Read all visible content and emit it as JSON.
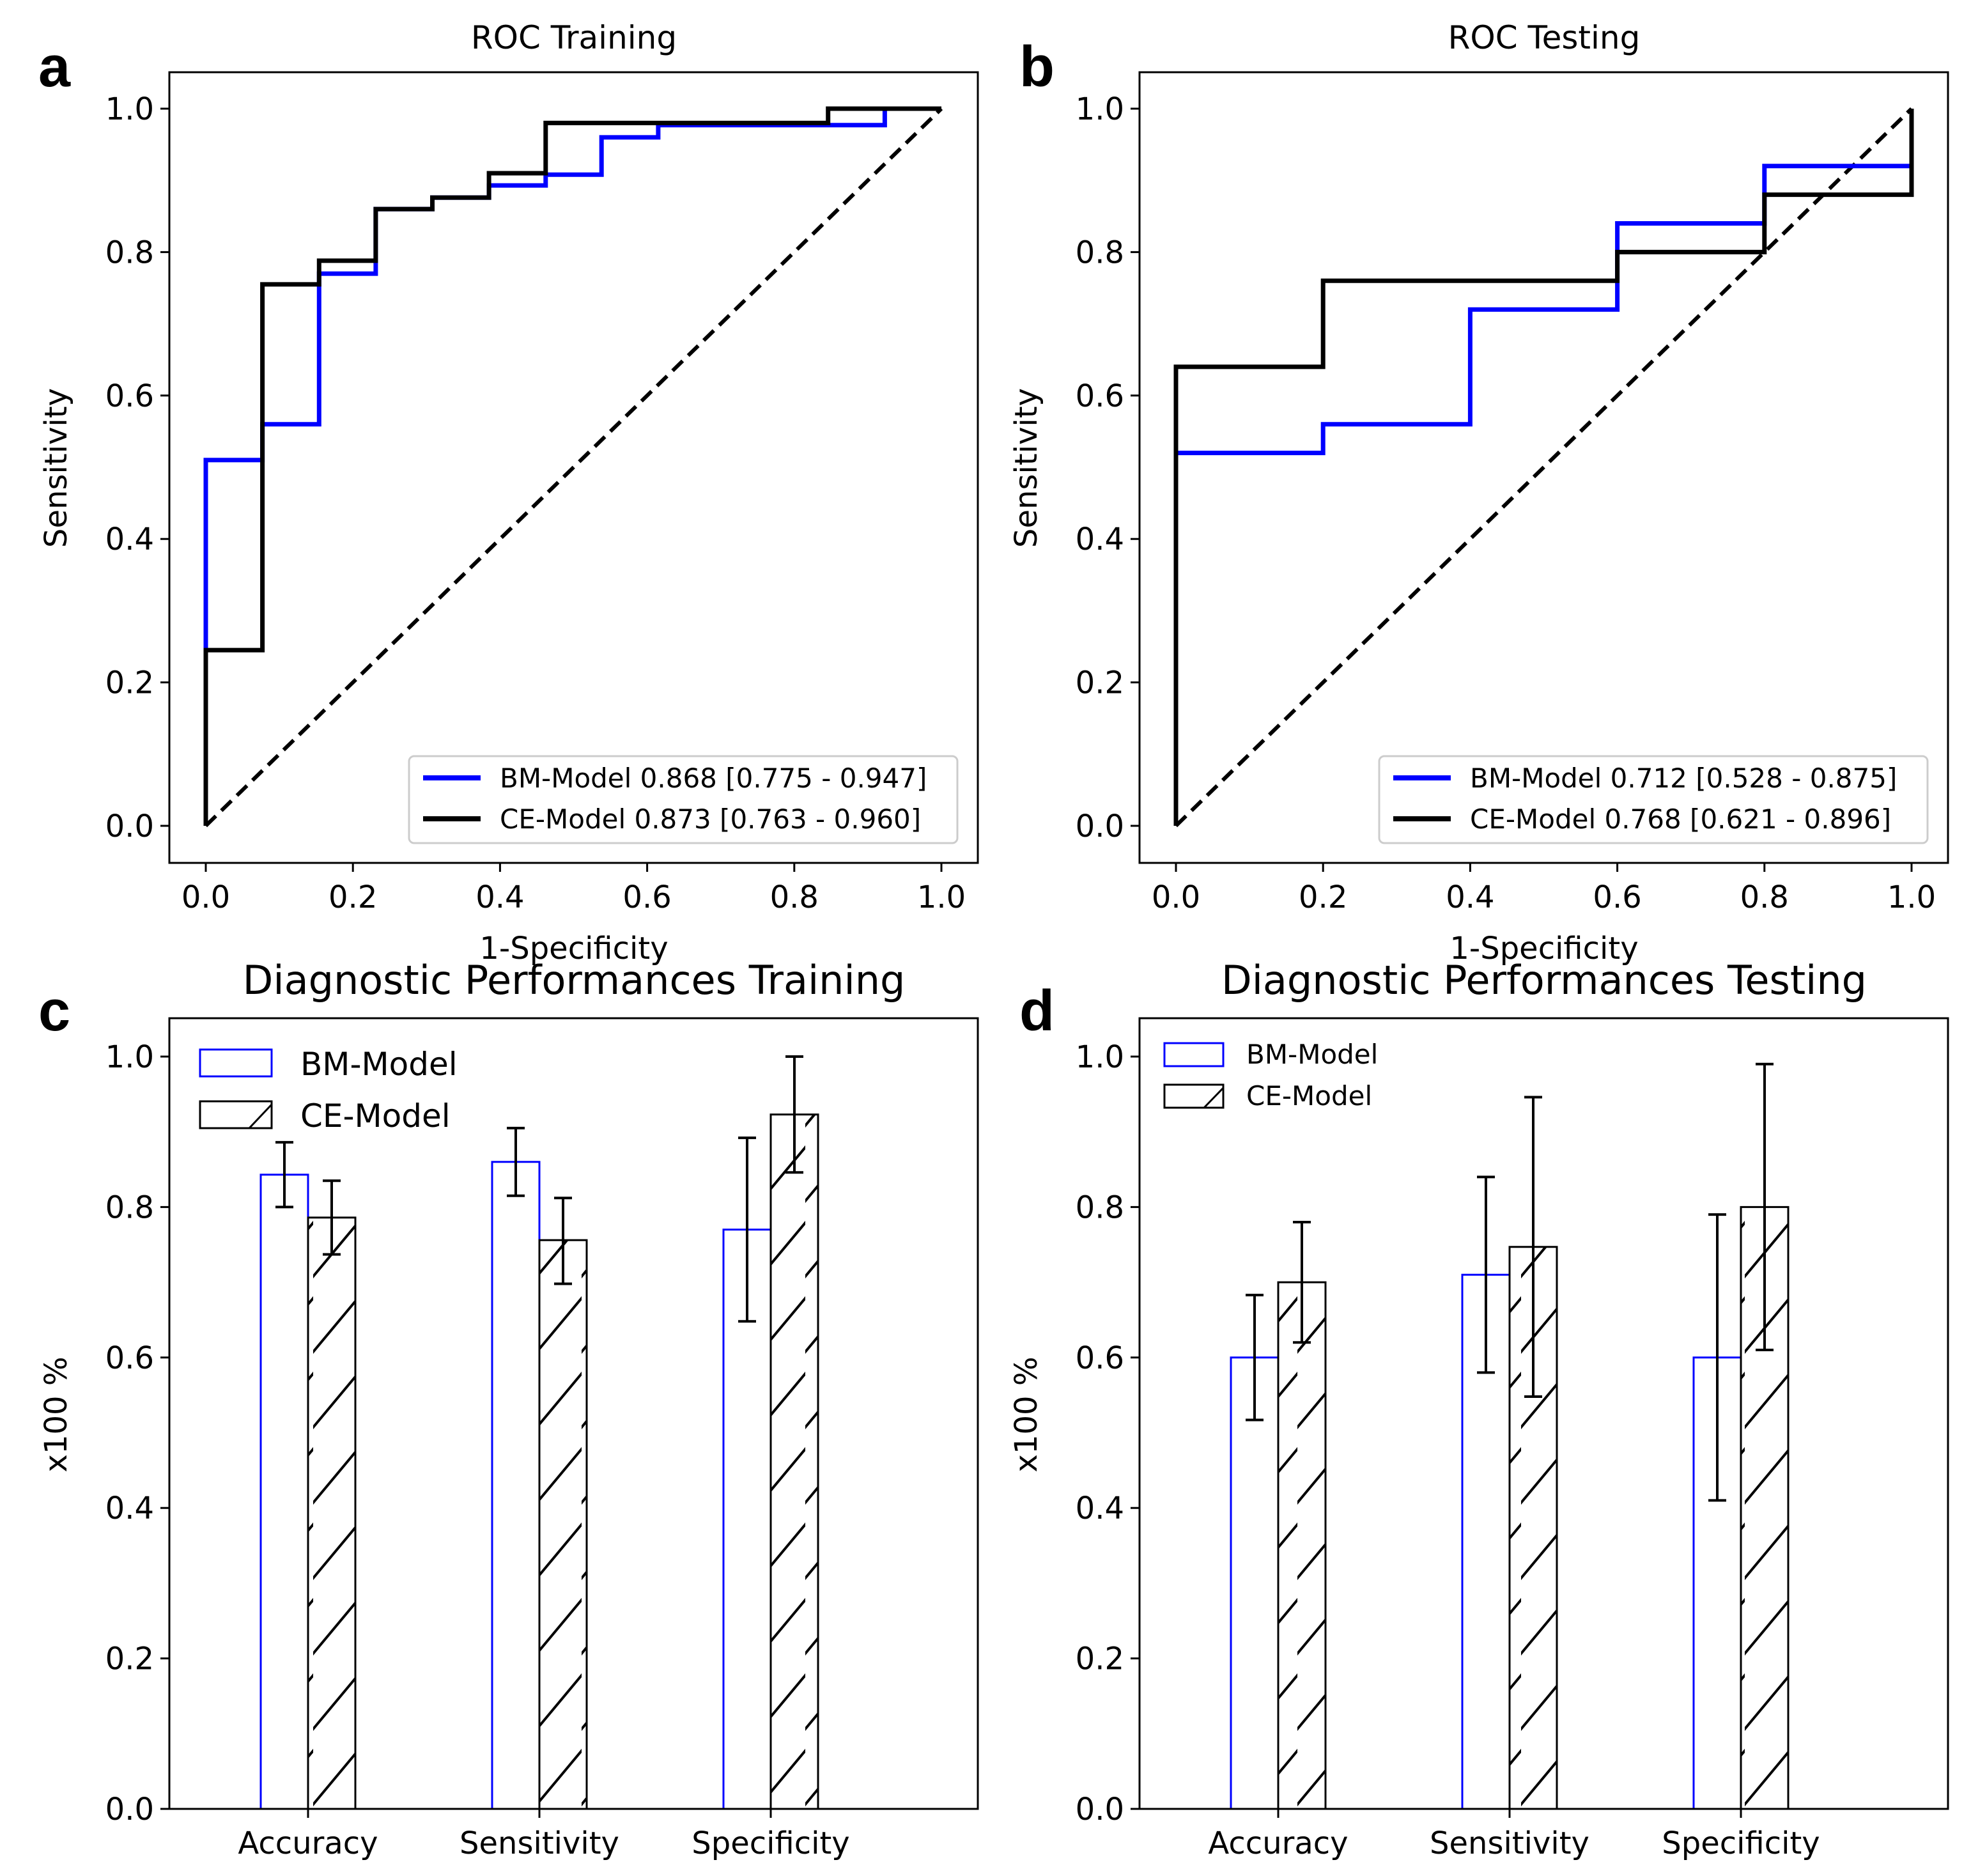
{
  "chart_data": [
    {
      "panel": "a",
      "type": "line",
      "title": "ROC Training",
      "xlabel": "1-Specificity",
      "ylabel": "Sensitivity",
      "xlim": [
        0,
        1
      ],
      "ylim": [
        0,
        1
      ],
      "xticks": [
        "0.0",
        "0.2",
        "0.4",
        "0.6",
        "0.8",
        "1.0"
      ],
      "yticks": [
        "0.0",
        "0.2",
        "0.4",
        "0.6",
        "0.8",
        "1.0"
      ],
      "legend_position": "bottom-right",
      "diagonal": true,
      "series": [
        {
          "name": "BM-Model 0.868 [0.775 - 0.947]",
          "color": "#0000ff",
          "step": true,
          "x": [
            0,
            0,
            0.077,
            0.077,
            0.154,
            0.154,
            0.231,
            0.231,
            0.308,
            0.308,
            0.385,
            0.385,
            0.462,
            0.462,
            0.538,
            0.538,
            0.615,
            0.615,
            0.846,
            0.846,
            0.923,
            0.923,
            1.0
          ],
          "y": [
            0,
            0.51,
            0.51,
            0.56,
            0.56,
            0.77,
            0.77,
            0.86,
            0.86,
            0.876,
            0.876,
            0.893,
            0.893,
            0.908,
            0.908,
            0.96,
            0.96,
            0.977,
            0.977,
            0.977,
            0.977,
            1.0,
            1.0
          ]
        },
        {
          "name": "CE-Model 0.873 [0.763 - 0.960]",
          "color": "#000000",
          "step": true,
          "x": [
            0,
            0,
            0.077,
            0.077,
            0.154,
            0.154,
            0.231,
            0.231,
            0.308,
            0.308,
            0.385,
            0.385,
            0.462,
            0.462,
            0.846,
            0.846,
            1.0
          ],
          "y": [
            0,
            0.245,
            0.245,
            0.755,
            0.755,
            0.788,
            0.788,
            0.86,
            0.86,
            0.876,
            0.876,
            0.91,
            0.91,
            0.98,
            0.98,
            1.0,
            1.0
          ]
        }
      ]
    },
    {
      "panel": "b",
      "type": "line",
      "title": "ROC Testing",
      "xlabel": "1-Specificity",
      "ylabel": "Sensitivity",
      "xlim": [
        0,
        1
      ],
      "ylim": [
        0,
        1
      ],
      "xticks": [
        "0.0",
        "0.2",
        "0.4",
        "0.6",
        "0.8",
        "1.0"
      ],
      "yticks": [
        "0.0",
        "0.2",
        "0.4",
        "0.6",
        "0.8",
        "1.0"
      ],
      "legend_position": "bottom-right",
      "diagonal": true,
      "series": [
        {
          "name": "BM-Model 0.712 [0.528 - 0.875]",
          "color": "#0000ff",
          "step": true,
          "x": [
            0,
            0,
            0.2,
            0.2,
            0.4,
            0.4,
            0.6,
            0.6,
            0.8,
            0.8,
            1.0
          ],
          "y": [
            0,
            0.52,
            0.52,
            0.56,
            0.56,
            0.72,
            0.72,
            0.84,
            0.84,
            0.92,
            0.92
          ]
        },
        {
          "name": "CE-Model 0.768 [0.621 - 0.896]",
          "color": "#000000",
          "step": true,
          "x": [
            0,
            0,
            0.2,
            0.2,
            0.6,
            0.6,
            0.8,
            0.8,
            1.0,
            1.0
          ],
          "y": [
            0,
            0.64,
            0.64,
            0.76,
            0.76,
            0.8,
            0.8,
            0.88,
            0.88,
            1.0
          ]
        }
      ]
    },
    {
      "panel": "c",
      "type": "bar",
      "title": "Diagnostic Performances Training",
      "xlabel": "",
      "ylabel": "x100 %",
      "ylim": [
        0,
        1.05
      ],
      "yticks": [
        "0.0",
        "0.2",
        "0.4",
        "0.6",
        "0.8",
        "1.0"
      ],
      "categories": [
        "Accuracy",
        "Sensitivity",
        "Specificity"
      ],
      "legend_position": "top-left",
      "series": [
        {
          "name": "BM-Model",
          "color": "#0000ff",
          "hatch": false,
          "values": [
            0.843,
            0.86,
            0.77
          ],
          "err_low": [
            0.8,
            0.815,
            0.648
          ],
          "err_high": [
            0.886,
            0.905,
            0.892
          ]
        },
        {
          "name": "CE-Model",
          "color": "#000000",
          "hatch": true,
          "values": [
            0.786,
            0.756,
            0.923
          ],
          "err_low": [
            0.737,
            0.698,
            0.846
          ],
          "err_high": [
            0.835,
            0.812,
            1.0
          ]
        }
      ]
    },
    {
      "panel": "d",
      "type": "bar",
      "title": "Diagnostic Performances Testing",
      "xlabel": "",
      "ylabel": "x100 %",
      "ylim": [
        0,
        1.05
      ],
      "yticks": [
        "0.0",
        "0.2",
        "0.4",
        "0.6",
        "0.8",
        "1.0"
      ],
      "categories": [
        "Accuracy",
        "Sensitivity",
        "Specificity"
      ],
      "legend_position": "top-left",
      "series": [
        {
          "name": "BM-Model",
          "color": "#0000ff",
          "hatch": false,
          "values": [
            0.6,
            0.71,
            0.6
          ],
          "err_low": [
            0.517,
            0.58,
            0.41
          ],
          "err_high": [
            0.683,
            0.84,
            0.79
          ]
        },
        {
          "name": "CE-Model",
          "color": "#000000",
          "hatch": true,
          "values": [
            0.7,
            0.747,
            0.8
          ],
          "err_low": [
            0.62,
            0.548,
            0.61
          ],
          "err_high": [
            0.78,
            0.946,
            0.99
          ]
        }
      ]
    }
  ]
}
